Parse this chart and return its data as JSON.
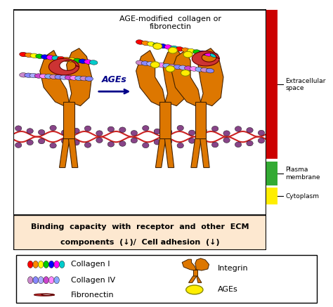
{
  "fig_width": 4.74,
  "fig_height": 4.37,
  "dpi": 100,
  "bg_color": "#ffffff",
  "main_panel_bg": "#ddeeff",
  "bottom_panel_bg": "#fde8d0",
  "legend_bg": "#ffffff",
  "border_color": "#000000",
  "title_text": "AGE-modified  collagen or\nfibronectin",
  "ages_label": "AGEs",
  "bottom_text_line1": "Binding  capacity  with  receptor  and  other  ECM",
  "bottom_text_line2": "components  (↓)/  Cell adhesion  (↓)",
  "label_extracellular": "Extracellular\nspace",
  "label_plasma": "Plasma\nmembrane",
  "label_cytoplasm": "Cytoplasm",
  "red_bar_color": "#cc0000",
  "green_bar_color": "#33aa33",
  "yellow_bar_color": "#ffee00",
  "membrane_red": "#cc2222",
  "membrane_purple": "#884488",
  "integrin_color": "#dd7700",
  "ages_dot_color": "#ffee00",
  "ages_dot_edge": "#888800",
  "arrow_color": "#000088",
  "collagen1_colors": [
    "#ff0000",
    "#ff8800",
    "#ffff00",
    "#00cc00",
    "#0000ff",
    "#ff00ff",
    "#00cccc"
  ],
  "collagen4_colors": [
    "#cc88cc",
    "#8888ff",
    "#aaaaff",
    "#cc44cc",
    "#ff88ff",
    "#88aaff"
  ]
}
